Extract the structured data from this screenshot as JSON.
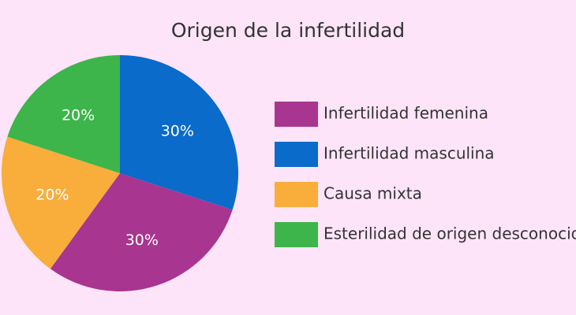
{
  "chart_data": {
    "type": "pie",
    "title": "Origen de la infertilidad",
    "categories": [
      "Infertilidad femenina",
      "Infertilidad masculina",
      "Causa mixta",
      "Esterilidad de origen desconocido"
    ],
    "values": [
      30,
      30,
      20,
      20
    ],
    "value_labels": [
      "30%",
      "30%",
      "20%",
      "20%"
    ],
    "colors": [
      "#a8358f",
      "#0a6bcb",
      "#f9ad3b",
      "#3db54a"
    ],
    "legend": "right"
  }
}
